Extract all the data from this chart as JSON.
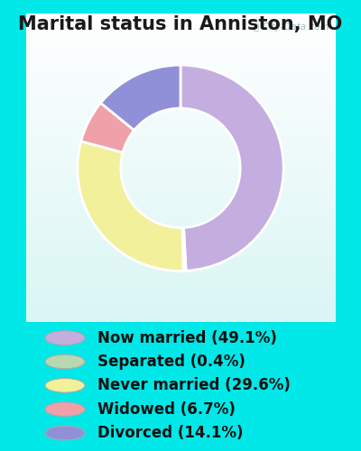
{
  "title": "Marital status in Anniston, MO",
  "slices": [
    {
      "label": "Now married (49.1%)",
      "value": 49.1,
      "color": "#c4aee0"
    },
    {
      "label": "Separated (0.4%)",
      "value": 0.4,
      "color": "#b8d8b0"
    },
    {
      "label": "Never married (29.6%)",
      "value": 29.6,
      "color": "#f2f09a"
    },
    {
      "label": "Widowed (6.7%)",
      "value": 6.7,
      "color": "#f0a0a8"
    },
    {
      "label": "Divorced (14.1%)",
      "value": 14.1,
      "color": "#9090d8"
    }
  ],
  "bg_outer": "#00e8e8",
  "bg_chart": "#d4eed8",
  "title_fontsize": 15,
  "legend_fontsize": 12,
  "watermark": "City-Data.com",
  "donut_width": 0.42
}
